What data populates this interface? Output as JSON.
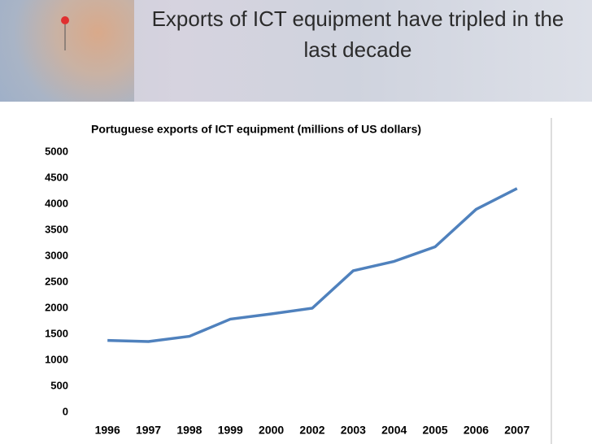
{
  "slide_title": "Exports of ICT equipment have tripled in the last decade",
  "chart_data": {
    "type": "line",
    "title": "Portuguese exports of ICT equipment (millions of US dollars)",
    "categories": [
      "1996",
      "1997",
      "1998",
      "1999",
      "2000",
      "2002",
      "2003",
      "2004",
      "2005",
      "2006",
      "2007"
    ],
    "values": [
      1380,
      1360,
      1460,
      1790,
      1890,
      2000,
      2720,
      2900,
      3180,
      3900,
      4300
    ],
    "color": "#4f81bd",
    "ylim": [
      0,
      5000
    ],
    "yticks": [
      0,
      500,
      1000,
      1500,
      2000,
      2500,
      3000,
      3500,
      4000,
      4500,
      5000
    ],
    "grid": false
  }
}
